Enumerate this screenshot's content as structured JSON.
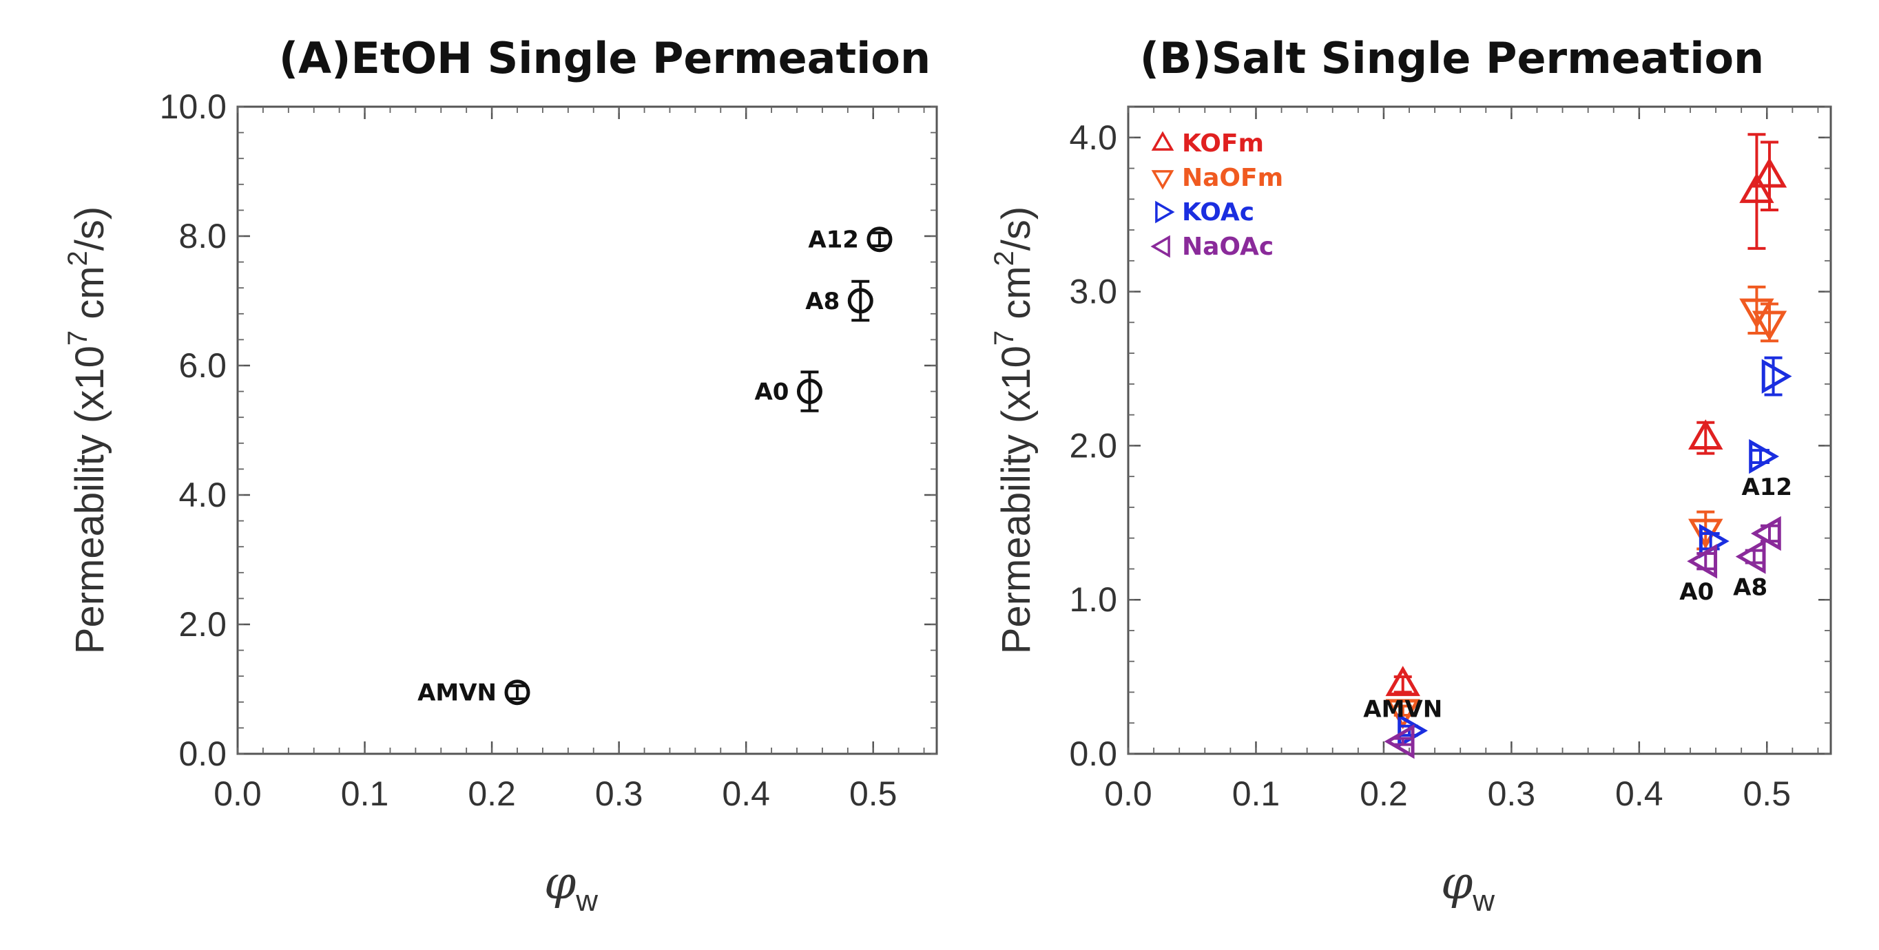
{
  "chart_data": [
    {
      "type": "scatter",
      "title": "(A)EtOH Single Permeation",
      "ylabel": {
        "main": "Permeability (x10",
        "exp1": "7",
        "mid": " cm",
        "exp2": "2",
        "end": "/s)"
      },
      "xlabel": {
        "symbol": "φ",
        "sub": "w"
      },
      "xlim": [
        0.0,
        0.55
      ],
      "ylim": [
        0.0,
        10.0
      ],
      "xticks": [
        0.0,
        0.1,
        0.2,
        0.3,
        0.4,
        0.5
      ],
      "xtick_labels": [
        "0.0",
        "0.1",
        "0.2",
        "0.3",
        "0.4",
        "0.5"
      ],
      "yticks": [
        0.0,
        2.0,
        4.0,
        6.0,
        8.0,
        10.0
      ],
      "ytick_labels": [
        "0.0",
        "2.0",
        "4.0",
        "6.0",
        "8.0",
        "10.0"
      ],
      "series": [
        {
          "name": "EtOH",
          "color": "#111111",
          "marker": "circle",
          "points": [
            {
              "x": 0.22,
              "y": 0.95,
              "err": 0.1,
              "label": "AMVN"
            },
            {
              "x": 0.45,
              "y": 5.6,
              "err": 0.3,
              "label": "A0"
            },
            {
              "x": 0.49,
              "y": 7.0,
              "err": 0.3,
              "label": "A8"
            },
            {
              "x": 0.505,
              "y": 7.95,
              "err": 0.1,
              "label": "A12"
            }
          ]
        }
      ]
    },
    {
      "type": "scatter",
      "title": "(B)Salt Single Permeation",
      "ylabel": {
        "main": "Permeability (x10",
        "exp1": "7",
        "mid": " cm",
        "exp2": "2",
        "end": "/s)"
      },
      "xlabel": {
        "symbol": "φ",
        "sub": "w"
      },
      "xlim": [
        0.0,
        0.55
      ],
      "ylim": [
        0.0,
        4.2
      ],
      "xticks": [
        0.0,
        0.1,
        0.2,
        0.3,
        0.4,
        0.5
      ],
      "xtick_labels": [
        "0.0",
        "0.1",
        "0.2",
        "0.3",
        "0.4",
        "0.5"
      ],
      "yticks": [
        0.0,
        1.0,
        2.0,
        3.0,
        4.0
      ],
      "ytick_labels": [
        "0.0",
        "1.0",
        "2.0",
        "3.0",
        "4.0"
      ],
      "legend_position": "top-left",
      "series": [
        {
          "name": "KOFm",
          "color": "#e02020",
          "marker": "triangle-up",
          "points": [
            {
              "x": 0.215,
              "y": 0.45,
              "err": 0.05
            },
            {
              "x": 0.452,
              "y": 2.05,
              "err": 0.1
            },
            {
              "x": 0.492,
              "y": 3.65,
              "err": 0.37
            },
            {
              "x": 0.502,
              "y": 3.75,
              "err": 0.22
            }
          ]
        },
        {
          "name": "NaOFm",
          "color": "#f05a20",
          "marker": "triangle-down",
          "points": [
            {
              "x": 0.215,
              "y": 0.28,
              "err": 0.03
            },
            {
              "x": 0.452,
              "y": 1.45,
              "err": 0.12
            },
            {
              "x": 0.492,
              "y": 2.88,
              "err": 0.15
            },
            {
              "x": 0.502,
              "y": 2.8,
              "err": 0.12
            }
          ]
        },
        {
          "name": "KOAc",
          "color": "#1a2ee0",
          "marker": "triangle-right",
          "points": [
            {
              "x": 0.22,
              "y": 0.15,
              "err": 0.03
            },
            {
              "x": 0.456,
              "y": 1.38,
              "err": 0.05
            },
            {
              "x": 0.495,
              "y": 1.93,
              "err": 0.04
            },
            {
              "x": 0.505,
              "y": 2.45,
              "err": 0.12
            }
          ]
        },
        {
          "name": "NaOAc",
          "color": "#8a2a9a",
          "marker": "triangle-left",
          "points": [
            {
              "x": 0.215,
              "y": 0.08,
              "err": 0.02
            },
            {
              "x": 0.452,
              "y": 1.25,
              "err": 0.05
            },
            {
              "x": 0.49,
              "y": 1.28,
              "err": 0.04
            },
            {
              "x": 0.502,
              "y": 1.43,
              "err": 0.05
            }
          ]
        }
      ],
      "annotations": [
        {
          "text": "AMVN",
          "x": 0.215,
          "y": 0.24
        },
        {
          "text": "A0",
          "x": 0.445,
          "y": 1.0
        },
        {
          "text": "A8",
          "x": 0.487,
          "y": 1.03
        },
        {
          "text": "A12",
          "x": 0.5,
          "y": 1.68
        }
      ]
    }
  ]
}
